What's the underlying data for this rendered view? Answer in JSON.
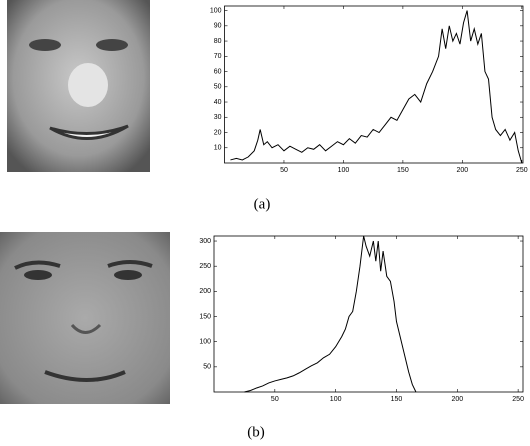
{
  "chart_data": [
    {
      "type": "line",
      "caption": "(a)",
      "series": [
        {
          "color": "#000000",
          "x": [
            5,
            10,
            15,
            20,
            25,
            28,
            30,
            33,
            36,
            40,
            45,
            50,
            55,
            60,
            65,
            70,
            75,
            80,
            85,
            90,
            95,
            100,
            105,
            110,
            115,
            120,
            125,
            130,
            135,
            140,
            145,
            150,
            155,
            160,
            165,
            170,
            175,
            180,
            183,
            186,
            189,
            192,
            195,
            198,
            201,
            204,
            207,
            210,
            213,
            216,
            219,
            222,
            225,
            228,
            232,
            236,
            240,
            244,
            247,
            250
          ],
          "values": [
            2,
            3,
            2,
            4,
            8,
            15,
            22,
            12,
            14,
            10,
            12,
            8,
            11,
            9,
            7,
            10,
            9,
            12,
            8,
            11,
            14,
            12,
            16,
            13,
            18,
            17,
            22,
            20,
            25,
            30,
            28,
            35,
            42,
            45,
            40,
            52,
            60,
            70,
            88,
            75,
            90,
            80,
            85,
            78,
            92,
            100,
            80,
            88,
            78,
            85,
            60,
            55,
            30,
            22,
            18,
            22,
            15,
            20,
            8,
            0
          ]
        }
      ],
      "xlim": [
        0,
        251
      ],
      "ylim": [
        0,
        103
      ],
      "xticks": [
        50,
        100,
        150,
        200,
        250
      ],
      "yticks": [
        10,
        20,
        30,
        40,
        50,
        60,
        70,
        80,
        90,
        100
      ]
    },
    {
      "type": "line",
      "caption": "(b)",
      "series": [
        {
          "color": "#000000",
          "x": [
            25,
            30,
            35,
            40,
            45,
            50,
            55,
            60,
            65,
            70,
            75,
            80,
            85,
            90,
            95,
            100,
            105,
            108,
            111,
            114,
            117,
            120,
            123,
            125,
            128,
            131,
            133,
            135,
            137,
            139,
            142,
            145,
            148,
            150,
            153,
            156,
            160,
            163,
            166
          ],
          "values": [
            0,
            3,
            8,
            12,
            18,
            22,
            25,
            28,
            32,
            38,
            45,
            52,
            58,
            68,
            75,
            90,
            110,
            125,
            150,
            160,
            200,
            250,
            310,
            290,
            270,
            300,
            260,
            300,
            240,
            280,
            230,
            220,
            180,
            140,
            110,
            80,
            40,
            15,
            0
          ]
        }
      ],
      "xlim": [
        0,
        254
      ],
      "ylim": [
        0,
        310
      ],
      "xticks": [
        50,
        100,
        150,
        200,
        250
      ],
      "yticks": [
        50,
        100,
        150,
        200,
        250,
        300
      ]
    }
  ]
}
